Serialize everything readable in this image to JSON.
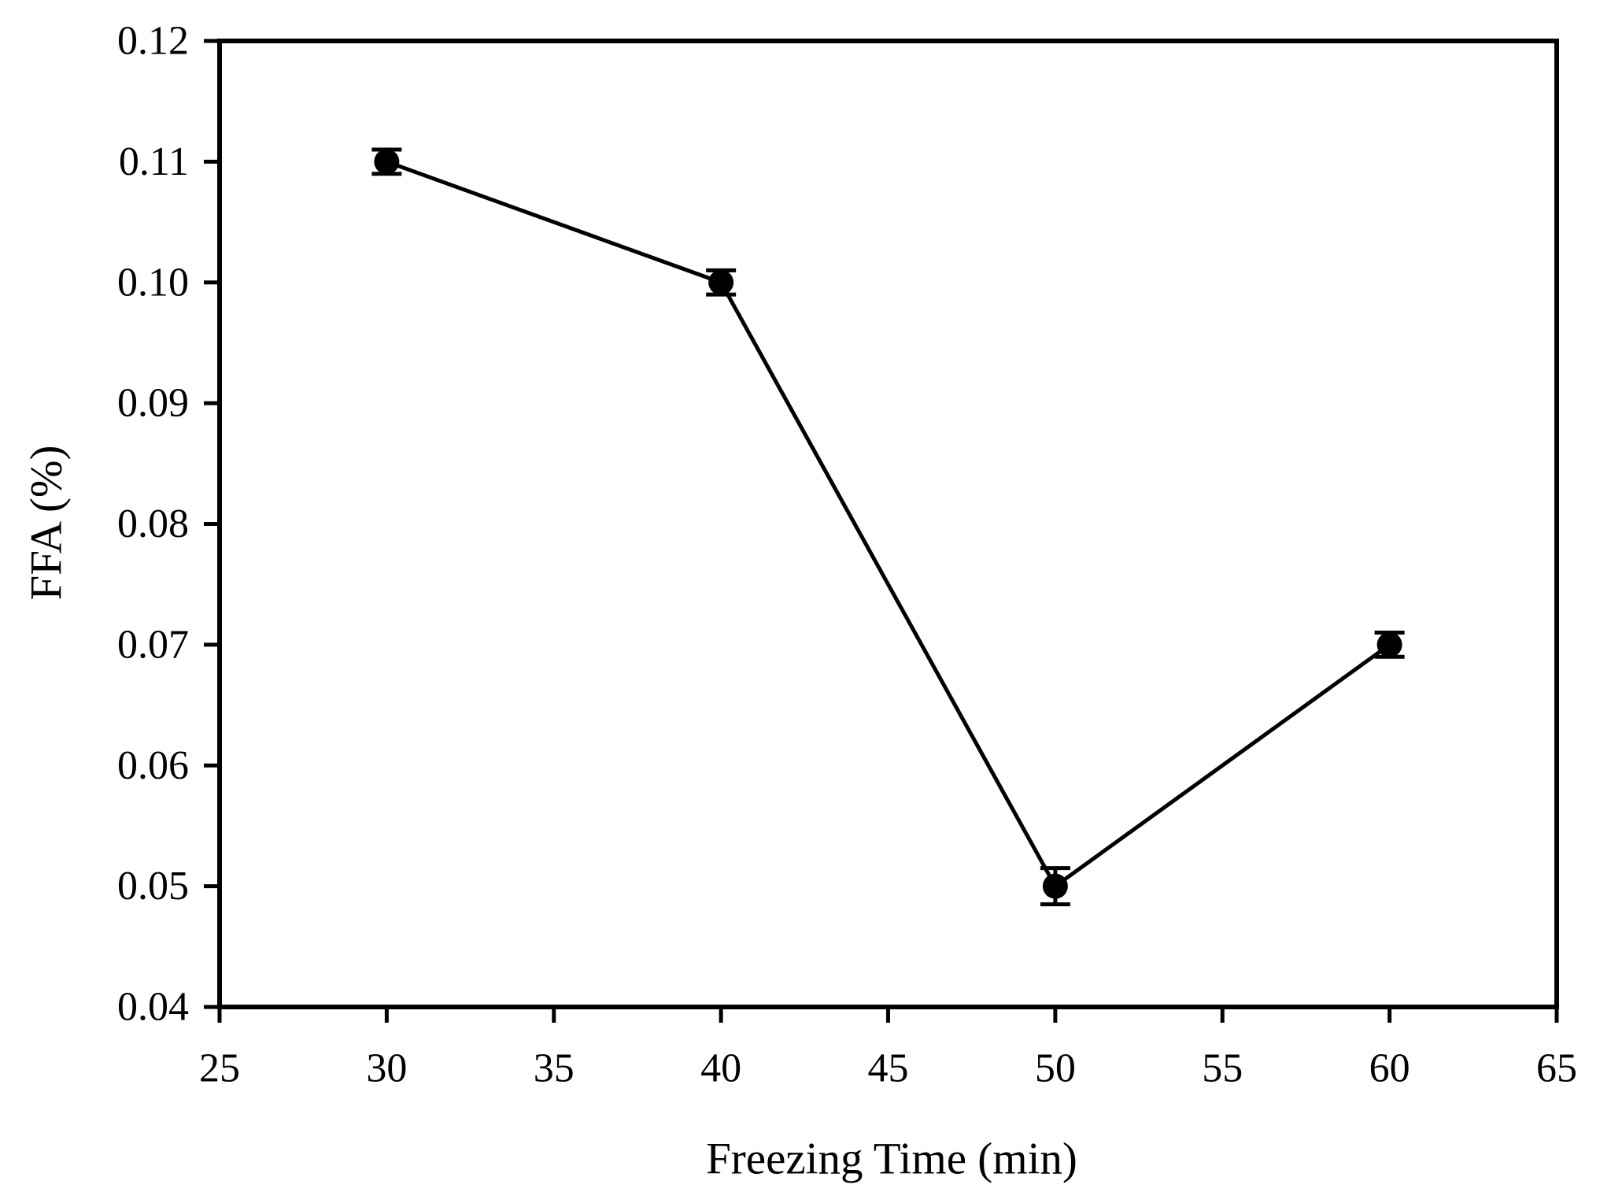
{
  "figure": {
    "background_color": "#ffffff",
    "ink_color": "#000000"
  },
  "chart_data": {
    "type": "line",
    "title": "",
    "xlabel": "Freezing Time (min)",
    "ylabel": "FFA (%)",
    "x": [
      30,
      40,
      50,
      60
    ],
    "series": [
      {
        "name": "FFA",
        "values": [
          0.11,
          0.1,
          0.05,
          0.07
        ],
        "errors": [
          0.001,
          0.001,
          0.0015,
          0.001
        ],
        "color": "#000000",
        "marker": "filled-circle"
      }
    ],
    "xlim": [
      25,
      65
    ],
    "ylim": [
      0.04,
      0.12
    ],
    "xticks": [
      25,
      30,
      35,
      40,
      45,
      50,
      55,
      60,
      65
    ],
    "yticks": [
      0.04,
      0.05,
      0.06,
      0.07,
      0.08,
      0.09,
      0.1,
      0.11,
      0.12
    ],
    "xtick_labels": [
      "25",
      "30",
      "35",
      "40",
      "45",
      "50",
      "55",
      "60",
      "65"
    ],
    "ytick_labels": [
      "0.04",
      "0.05",
      "0.06",
      "0.07",
      "0.08",
      "0.09",
      "0.10",
      "0.11",
      "0.12"
    ],
    "grid": false,
    "legend_position": "none",
    "error_bars": true,
    "frame": "full-box",
    "tick_direction": "out"
  }
}
